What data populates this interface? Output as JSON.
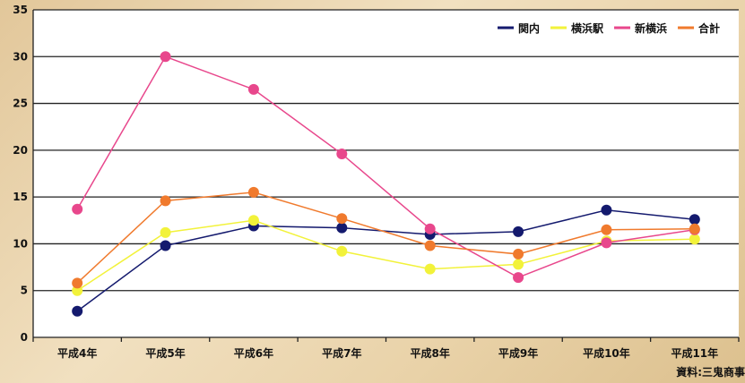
{
  "chart_data": {
    "type": "line",
    "categories": [
      "平成4年",
      "平成5年",
      "平成6年",
      "平成7年",
      "平成8年",
      "平成9年",
      "平成10年",
      "平成11年"
    ],
    "ylim": [
      0,
      35
    ],
    "yticks": [
      0,
      5,
      10,
      15,
      20,
      25,
      30,
      35
    ],
    "grid": true,
    "legend_position": "top-right",
    "series": [
      {
        "name": "関内",
        "color": "#141a6e",
        "values": [
          2.8,
          9.8,
          11.9,
          11.7,
          11.0,
          11.3,
          13.6,
          12.6
        ]
      },
      {
        "name": "横浜駅",
        "color": "#f2f23a",
        "values": [
          5.0,
          11.2,
          12.5,
          9.2,
          7.3,
          7.8,
          10.3,
          10.5
        ]
      },
      {
        "name": "新横浜",
        "color": "#e8478c",
        "values": [
          13.7,
          30.0,
          26.5,
          19.6,
          11.6,
          6.4,
          10.1,
          11.5
        ]
      },
      {
        "name": "合計",
        "color": "#f07a2d",
        "values": [
          5.8,
          14.6,
          15.5,
          12.7,
          9.8,
          8.9,
          11.5,
          11.6
        ]
      }
    ]
  },
  "source_note": "資料:三鬼商事"
}
